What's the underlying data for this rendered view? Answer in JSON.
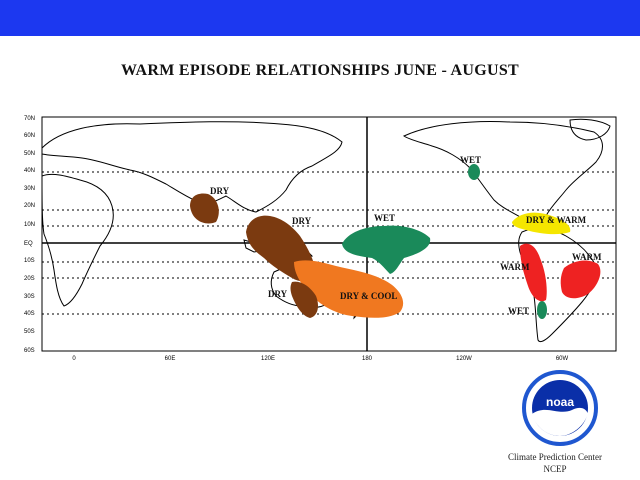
{
  "title": "WARM EPISODE RELATIONSHIPS   JUNE - AUGUST",
  "axes": {
    "lat_labels": [
      "70N",
      "60N",
      "50N",
      "40N",
      "30N",
      "20N",
      "10N",
      "EQ",
      "10S",
      "20S",
      "30S",
      "40S",
      "50S",
      "60S"
    ],
    "lon_labels": [
      "0",
      "60E",
      "120E",
      "180",
      "120W",
      "60W"
    ]
  },
  "regions": [
    {
      "label": "DRY",
      "type": "dry",
      "color": "#7b3a10"
    },
    {
      "label": "DRY",
      "type": "dry",
      "color": "#7b3a10"
    },
    {
      "label": "DRY",
      "type": "dry",
      "color": "#7b3a10"
    },
    {
      "label": "DRY & COOL",
      "type": "dry-cool",
      "color": "#f07820"
    },
    {
      "label": "WET",
      "type": "wet",
      "color": "#1a8a5a"
    },
    {
      "label": "WET",
      "type": "wet",
      "color": "#1a8a5a"
    },
    {
      "label": "WET",
      "type": "wet",
      "color": "#1a8a5a"
    },
    {
      "label": "DRY & WARM",
      "type": "dry-warm",
      "color": "#f5e600"
    },
    {
      "label": "WARM",
      "type": "warm",
      "color": "#ee2222"
    },
    {
      "label": "WARM",
      "type": "warm",
      "color": "#ee2222"
    }
  ],
  "logo": {
    "text": "noaa",
    "icon": "noaa-logo-icon"
  },
  "credit": {
    "line1": "Climate Prediction Center",
    "line2": "NCEP"
  }
}
